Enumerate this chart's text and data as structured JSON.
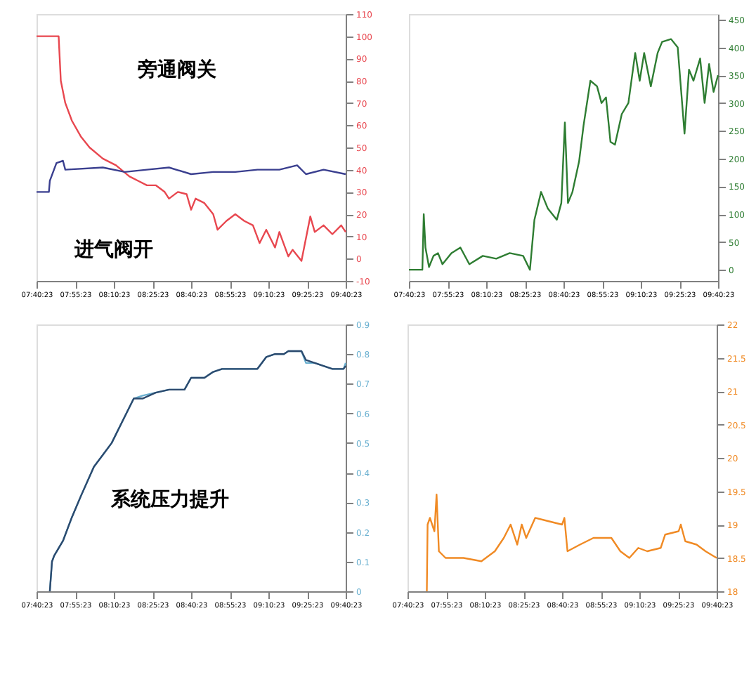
{
  "chart_data": [
    {
      "type": "line",
      "annotations": [
        "旁通阀关",
        "进气阀开"
      ],
      "xlim": [
        7.673,
        9.673
      ],
      "ylim": [
        -10,
        110
      ],
      "yticks": [
        -10,
        0,
        10,
        20,
        30,
        40,
        50,
        60,
        70,
        80,
        90,
        100,
        110
      ],
      "xticks": [
        {
          "value": 7.673,
          "label": "07:40:23"
        },
        {
          "value": 7.923,
          "label": "07:55:23"
        },
        {
          "value": 8.173,
          "label": "08:10:23"
        },
        {
          "value": 8.423,
          "label": "08:25:23"
        },
        {
          "value": 8.673,
          "label": "08:40:23"
        },
        {
          "value": 8.923,
          "label": "08:55:23"
        },
        {
          "value": 9.173,
          "label": "09:10:23"
        },
        {
          "value": 9.423,
          "label": "09:25:23"
        },
        {
          "value": 9.673,
          "label": "09:40:23"
        }
      ],
      "grid": false,
      "series": [
        {
          "color": "#e8474f",
          "x": [
            7.673,
            7.796,
            7.816,
            7.83,
            7.859,
            7.902,
            7.959,
            8.016,
            8.102,
            8.187,
            8.273,
            8.33,
            8.387,
            8.444,
            8.502,
            8.53,
            8.587,
            8.644,
            8.673,
            8.702,
            8.759,
            8.816,
            8.844,
            8.902,
            8.959,
            9.016,
            9.073,
            9.116,
            9.159,
            9.216,
            9.244,
            9.302,
            9.33,
            9.387,
            9.444,
            9.473,
            9.53,
            9.587,
            9.644,
            9.673
          ],
          "values": [
            100,
            100,
            100,
            80,
            70,
            62,
            55,
            50,
            45,
            42,
            37,
            35,
            33,
            33,
            30,
            27,
            30,
            29,
            22,
            27,
            25,
            20,
            13,
            17,
            20,
            17,
            15,
            7,
            13,
            5,
            12,
            1,
            4,
            -1,
            19,
            12,
            15,
            11,
            15,
            12
          ]
        },
        {
          "color": "#3a3f8f",
          "x": [
            7.673,
            7.753,
            7.759,
            7.802,
            7.844,
            7.859,
            8.102,
            8.244,
            8.387,
            8.53,
            8.673,
            8.816,
            8.959,
            9.102,
            9.244,
            9.359,
            9.416,
            9.53,
            9.673
          ],
          "values": [
            30,
            30,
            35,
            43,
            44,
            40,
            41,
            39,
            40,
            41,
            38,
            39,
            39,
            40,
            40,
            42,
            38,
            40,
            38
          ]
        }
      ]
    },
    {
      "type": "line",
      "xlim": [
        7.673,
        9.673
      ],
      "ylim": [
        -20,
        460
      ],
      "yticks": [
        0,
        50,
        100,
        150,
        200,
        250,
        300,
        350,
        400,
        450
      ],
      "xticks": [
        {
          "value": 7.673,
          "label": "07:40:23"
        },
        {
          "value": 7.923,
          "label": "07:55:23"
        },
        {
          "value": 8.173,
          "label": "08:10:23"
        },
        {
          "value": 8.423,
          "label": "08:25:23"
        },
        {
          "value": 8.673,
          "label": "08:40:23"
        },
        {
          "value": 8.923,
          "label": "08:55:23"
        },
        {
          "value": 9.173,
          "label": "09:10:23"
        },
        {
          "value": 9.423,
          "label": "09:25:23"
        },
        {
          "value": 9.673,
          "label": "09:40:23"
        }
      ],
      "grid": false,
      "series": [
        {
          "color": "#2e7d32",
          "x": [
            7.673,
            7.76,
            7.769,
            7.78,
            7.803,
            7.832,
            7.861,
            7.89,
            7.948,
            8.006,
            8.064,
            8.151,
            8.238,
            8.325,
            8.412,
            8.456,
            8.485,
            8.528,
            8.572,
            8.63,
            8.659,
            8.682,
            8.702,
            8.731,
            8.774,
            8.803,
            8.847,
            8.89,
            8.919,
            8.948,
            8.977,
            9.006,
            9.05,
            9.093,
            9.137,
            9.166,
            9.195,
            9.238,
            9.282,
            9.311,
            9.369,
            9.412,
            9.456,
            9.485,
            9.514,
            9.557,
            9.586,
            9.615,
            9.644,
            9.673
          ],
          "values": [
            0,
            0,
            100,
            40,
            5,
            25,
            30,
            10,
            30,
            40,
            10,
            25,
            20,
            30,
            25,
            0,
            90,
            140,
            110,
            90,
            120,
            265,
            120,
            140,
            195,
            260,
            340,
            330,
            300,
            310,
            230,
            225,
            280,
            300,
            390,
            340,
            390,
            330,
            390,
            410,
            415,
            400,
            245,
            360,
            340,
            380,
            300,
            370,
            320,
            350
          ]
        }
      ]
    },
    {
      "type": "line",
      "xlim": [
        7.673,
        9.673
      ],
      "ylim": [
        0,
        0.9
      ],
      "yticks": [
        0,
        0.1,
        0.2,
        0.3,
        0.4,
        0.5,
        0.6,
        0.7,
        0.8,
        0.9
      ],
      "annotations": [
        "系统压力提升"
      ],
      "xticks": [
        {
          "value": 7.673,
          "label": "07:40:23"
        },
        {
          "value": 7.923,
          "label": "07:55:23"
        },
        {
          "value": 8.173,
          "label": "08:10:23"
        },
        {
          "value": 8.423,
          "label": "08:25:23"
        },
        {
          "value": 8.673,
          "label": "08:40:23"
        },
        {
          "value": 8.923,
          "label": "08:55:23"
        },
        {
          "value": 9.173,
          "label": "09:10:23"
        },
        {
          "value": 9.423,
          "label": "09:25:23"
        },
        {
          "value": 9.673,
          "label": "09:40:23"
        }
      ],
      "grid": false,
      "series": [
        {
          "color": "#6ab0d0",
          "x": [
            7.759,
            7.773,
            7.787,
            7.844,
            7.902,
            7.959,
            8.044,
            8.102,
            8.159,
            8.216,
            8.302,
            8.359,
            8.444,
            8.53,
            8.63,
            8.673,
            8.759,
            8.816,
            8.873,
            9.102,
            9.159,
            9.216,
            9.273,
            9.302,
            9.387,
            9.416,
            9.473,
            9.53,
            9.587,
            9.659,
            9.673
          ],
          "values": [
            0,
            0.1,
            0.12,
            0.17,
            0.25,
            0.32,
            0.42,
            0.46,
            0.5,
            0.56,
            0.65,
            0.66,
            0.67,
            0.68,
            0.68,
            0.72,
            0.72,
            0.74,
            0.75,
            0.75,
            0.79,
            0.8,
            0.8,
            0.81,
            0.81,
            0.77,
            0.77,
            0.76,
            0.75,
            0.75,
            0.77
          ]
        },
        {
          "color": "#2c4a6e",
          "x": [
            7.759,
            7.773,
            7.787,
            7.844,
            7.902,
            7.959,
            8.044,
            8.102,
            8.159,
            8.216,
            8.302,
            8.359,
            8.444,
            8.53,
            8.63,
            8.673,
            8.759,
            8.816,
            8.873,
            9.102,
            9.159,
            9.216,
            9.273,
            9.302,
            9.387,
            9.416,
            9.473,
            9.53,
            9.587,
            9.659,
            9.673
          ],
          "values": [
            0,
            0.1,
            0.12,
            0.17,
            0.25,
            0.32,
            0.42,
            0.46,
            0.5,
            0.56,
            0.65,
            0.65,
            0.67,
            0.68,
            0.68,
            0.72,
            0.72,
            0.74,
            0.75,
            0.75,
            0.79,
            0.8,
            0.8,
            0.81,
            0.81,
            0.78,
            0.77,
            0.76,
            0.75,
            0.75,
            0.76
          ]
        }
      ]
    },
    {
      "type": "line",
      "xlim": [
        7.673,
        9.673
      ],
      "ylim": [
        18,
        22
      ],
      "yticks": [
        18,
        18.5,
        19,
        19.5,
        20,
        20.5,
        21,
        21.5,
        22
      ],
      "xticks": [
        {
          "value": 7.673,
          "label": "07:40:23"
        },
        {
          "value": 7.923,
          "label": "07:55:23"
        },
        {
          "value": 8.173,
          "label": "08:10:23"
        },
        {
          "value": 8.423,
          "label": "08:25:23"
        },
        {
          "value": 8.673,
          "label": "08:40:23"
        },
        {
          "value": 8.923,
          "label": "08:55:23"
        },
        {
          "value": 9.173,
          "label": "09:10:23"
        },
        {
          "value": 9.423,
          "label": "09:25:23"
        },
        {
          "value": 9.673,
          "label": "09:40:23"
        }
      ],
      "grid": false,
      "series": [
        {
          "color": "#f08a24",
          "x": [
            7.798,
            7.803,
            7.818,
            7.847,
            7.861,
            7.876,
            7.919,
            8.035,
            8.151,
            8.238,
            8.296,
            8.34,
            8.383,
            8.412,
            8.441,
            8.499,
            8.586,
            8.673,
            8.688,
            8.708,
            8.789,
            8.876,
            8.992,
            9.05,
            9.108,
            9.166,
            9.224,
            9.311,
            9.34,
            9.427,
            9.441,
            9.47,
            9.543,
            9.601,
            9.673
          ],
          "values": [
            18,
            19,
            19.1,
            18.9,
            19.45,
            18.6,
            18.5,
            18.5,
            18.45,
            18.6,
            18.8,
            19.0,
            18.7,
            19.0,
            18.8,
            19.1,
            19.05,
            19.0,
            19.1,
            18.6,
            18.7,
            18.8,
            18.8,
            18.6,
            18.5,
            18.65,
            18.6,
            18.65,
            18.85,
            18.9,
            19.0,
            18.75,
            18.7,
            18.6,
            18.5
          ]
        }
      ]
    }
  ]
}
